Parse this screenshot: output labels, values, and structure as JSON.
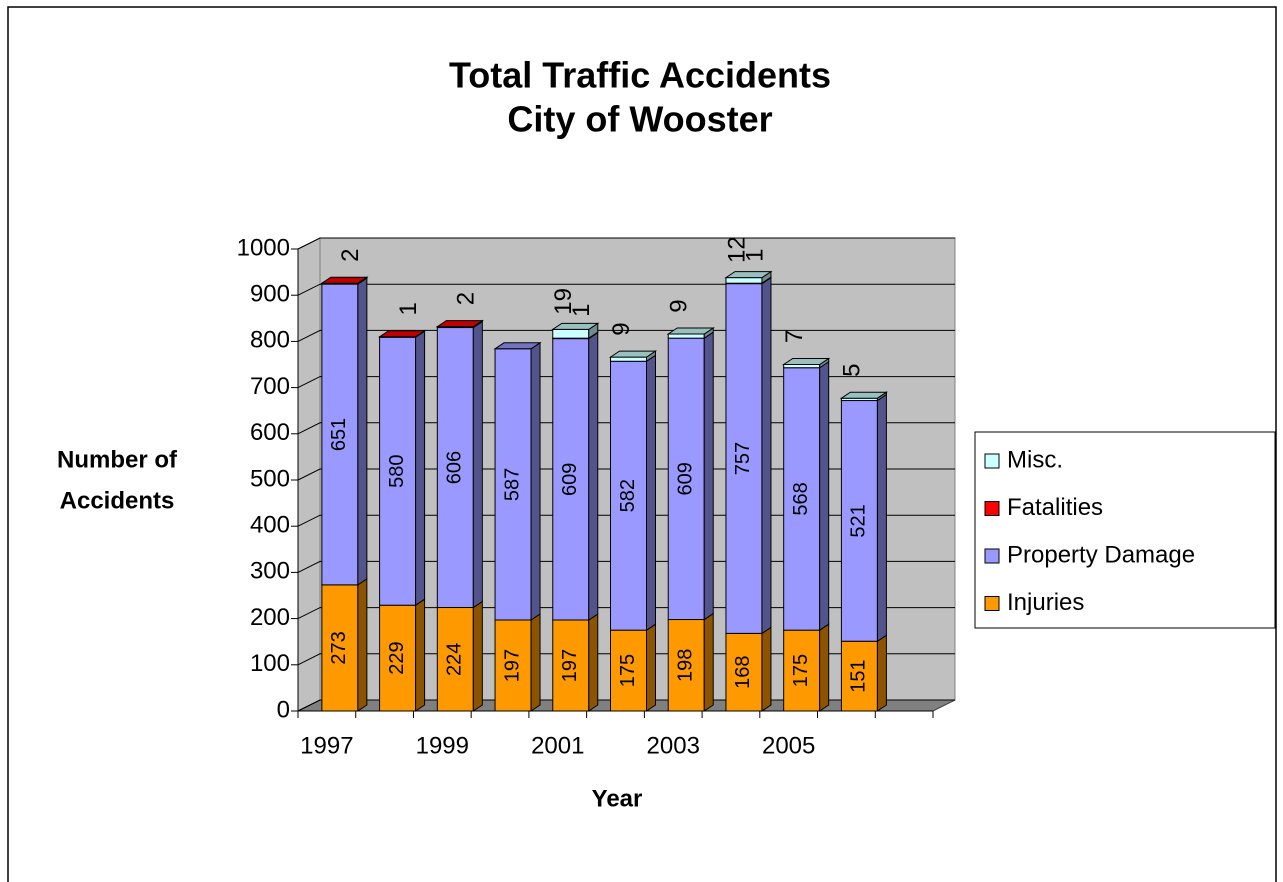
{
  "chart_data": {
    "type": "bar3d_stacked",
    "title": "Total Traffic Accidents",
    "subtitle": "City of Wooster",
    "ylabel": [
      "Number of",
      "Accidents"
    ],
    "xlabel": "Year",
    "categories": [
      "1997",
      null,
      "1999",
      null,
      "2001",
      null,
      "2003",
      null,
      "2005",
      null,
      null
    ],
    "series": [
      {
        "name": "Injuries",
        "color": "#ff9900",
        "values": [
          273,
          229,
          224,
          197,
          197,
          175,
          198,
          168,
          175,
          151,
          null
        ]
      },
      {
        "name": "Property Damage",
        "color": "#9999ff",
        "values": [
          651,
          580,
          606,
          587,
          609,
          582,
          609,
          757,
          568,
          521,
          null
        ]
      },
      {
        "name": "Fatalities",
        "color": "#ff0000",
        "values": [
          2,
          1,
          2,
          null,
          1,
          null,
          null,
          1,
          null,
          null,
          null
        ]
      },
      {
        "name": "Misc.",
        "color": "#ccffff",
        "values": [
          null,
          null,
          null,
          null,
          19,
          9,
          9,
          12,
          7,
          5,
          null
        ]
      }
    ],
    "ylim": [
      0,
      1000
    ],
    "yticks": [
      0,
      100,
      200,
      300,
      400,
      500,
      600,
      700,
      800,
      900,
      1000
    ],
    "grid": true,
    "legend": "right"
  }
}
